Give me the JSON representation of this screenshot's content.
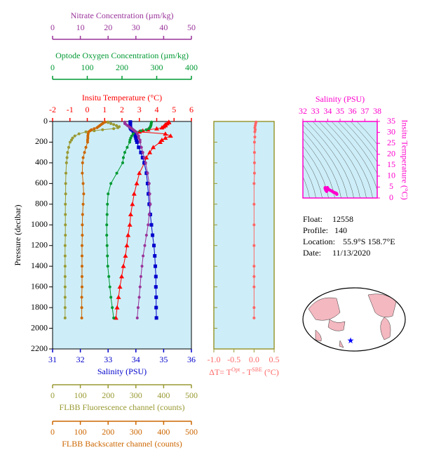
{
  "chart_data": [
    {
      "type": "line",
      "ylabel": "Pressure (decibar)",
      "ylim": [
        0,
        2200
      ],
      "yticks": [
        0,
        200,
        400,
        600,
        800,
        1000,
        1200,
        1400,
        1600,
        1800,
        2000,
        2200
      ],
      "background": "#cdeef8",
      "x_axes": [
        {
          "label": "Insitu Temperature (°C)",
          "color": "#ff0000",
          "side": "top",
          "xlim": [
            -2,
            6
          ],
          "xticks": [
            -2,
            -1,
            0,
            1,
            2,
            3,
            4,
            5,
            6
          ]
        },
        {
          "label": "Optode Oxygen Concentration (µm/kg)",
          "color": "#009933",
          "side": "top",
          "xlim": [
            0,
            400
          ],
          "xticks": [
            0,
            100,
            200,
            300,
            400
          ]
        },
        {
          "label": "Nitrate Concentration (µm/kg)",
          "color": "#993399",
          "side": "top",
          "xlim": [
            0,
            50
          ],
          "xticks": [
            0,
            10,
            20,
            30,
            40,
            50
          ]
        },
        {
          "label": "Salinity (PSU)",
          "color": "#0000cc",
          "side": "bottom",
          "xlim": [
            31,
            36
          ],
          "xticks": [
            31,
            32,
            33,
            34,
            35,
            36
          ]
        },
        {
          "label": "FLBB Fluorescence channel (counts)",
          "color": "#999933",
          "side": "bottom",
          "xlim": [
            0,
            500
          ],
          "xticks": [
            0,
            100,
            200,
            300,
            400,
            500
          ]
        },
        {
          "label": "FLBB Backscatter channel (counts)",
          "color": "#cc6600",
          "side": "bottom",
          "xlim": [
            0,
            500
          ],
          "xticks": [
            0,
            100,
            200,
            300,
            400,
            500
          ]
        }
      ],
      "series": [
        {
          "x_axis": 0,
          "color": "#ff0000",
          "marker": "triangle",
          "pressure": [
            5,
            10,
            20,
            30,
            40,
            50,
            60,
            70,
            80,
            90,
            100,
            120,
            140,
            160,
            180,
            200,
            250,
            300,
            350,
            400,
            500,
            600,
            700,
            800,
            900,
            1000,
            1100,
            1200,
            1300,
            1400,
            1500,
            1600,
            1700,
            1800,
            1900
          ],
          "values": [
            4.7,
            4.7,
            4.6,
            4.5,
            4.5,
            4.4,
            4.3,
            4.0,
            3.5,
            3.2,
            3.0,
            4.5,
            4.8,
            4.5,
            4.3,
            4.2,
            3.8,
            3.6,
            3.4,
            3.3,
            3.0,
            2.85,
            2.7,
            2.6,
            2.5,
            2.45,
            2.35,
            2.28,
            2.2,
            2.08,
            1.98,
            1.88,
            1.8,
            1.72,
            1.65
          ]
        },
        {
          "x_axis": 3,
          "color": "#0000cc",
          "marker": "square",
          "pressure": [
            5,
            10,
            20,
            30,
            40,
            50,
            60,
            70,
            80,
            90,
            100,
            120,
            140,
            160,
            180,
            200,
            250,
            300,
            350,
            400,
            500,
            600,
            700,
            800,
            900,
            1000,
            1100,
            1200,
            1300,
            1400,
            1500,
            1600,
            1700,
            1800,
            1900
          ],
          "values": [
            33.8,
            33.8,
            33.8,
            33.8,
            33.8,
            33.8,
            33.8,
            33.82,
            33.85,
            33.9,
            33.92,
            33.96,
            33.98,
            34.0,
            34.02,
            34.04,
            34.1,
            34.18,
            34.24,
            34.3,
            34.38,
            34.42,
            34.45,
            34.48,
            34.52,
            34.56,
            34.6,
            34.65,
            34.68,
            34.7,
            34.72,
            34.72,
            34.73,
            34.73,
            34.74
          ]
        },
        {
          "x_axis": 1,
          "color": "#009933",
          "marker": "circle",
          "pressure": [
            5,
            10,
            20,
            30,
            40,
            50,
            60,
            70,
            80,
            90,
            100,
            120,
            140,
            160,
            180,
            200,
            250,
            300,
            350,
            400,
            500,
            600,
            700,
            800,
            900,
            1000,
            1100,
            1200,
            1300,
            1400,
            1500,
            1600,
            1700,
            1800,
            1900
          ],
          "values": [
            285,
            285,
            284,
            284,
            283,
            282,
            280,
            278,
            270,
            255,
            240,
            232,
            228,
            225,
            223,
            222,
            215,
            208,
            204,
            202,
            185,
            168,
            160,
            158,
            157,
            156,
            156,
            157,
            158,
            159,
            162,
            165,
            168,
            172,
            176
          ]
        },
        {
          "x_axis": 2,
          "color": "#993399",
          "marker": "circle",
          "pressure": [
            5,
            10,
            20,
            30,
            40,
            50,
            60,
            70,
            80,
            90,
            100,
            120,
            140,
            160,
            180,
            200,
            250,
            300,
            350,
            400,
            500,
            600,
            700,
            800,
            900,
            1000,
            1100,
            1200,
            1300,
            1400,
            1500,
            1600,
            1700,
            1800,
            1900
          ],
          "values": [
            26,
            26,
            26,
            26.5,
            27,
            27.5,
            28,
            28.5,
            29,
            29.5,
            30,
            30.5,
            31,
            31,
            31.5,
            31.5,
            32,
            32.5,
            33,
            33.5,
            34.2,
            34.8,
            35,
            35.2,
            34.8,
            34.4,
            33.8,
            33.2,
            32.6,
            32.2,
            31.8,
            31.5,
            31.2,
            30.8,
            30.5
          ]
        },
        {
          "x_axis": 4,
          "color": "#999933",
          "marker": "circle",
          "pressure": [
            5,
            10,
            20,
            30,
            40,
            50,
            60,
            70,
            80,
            90,
            100,
            120,
            140,
            160,
            180,
            200,
            250,
            300,
            350,
            400,
            500,
            600,
            700,
            800,
            900,
            1000,
            1100,
            1200,
            1300,
            1400,
            1500,
            1600,
            1700,
            1800,
            1900
          ],
          "values": [
            200,
            200,
            210,
            220,
            230,
            240,
            235,
            220,
            180,
            150,
            120,
            95,
            80,
            72,
            68,
            63,
            58,
            54,
            52,
            50,
            48,
            47,
            47,
            46,
            46,
            46,
            46,
            45,
            45,
            45,
            45,
            45,
            45,
            45,
            45
          ]
        },
        {
          "x_axis": 5,
          "color": "#cc6600",
          "marker": "circle",
          "pressure": [
            5,
            10,
            20,
            30,
            40,
            50,
            60,
            70,
            80,
            90,
            100,
            120,
            140,
            160,
            180,
            200,
            250,
            300,
            350,
            400,
            500,
            600,
            700,
            800,
            900,
            1000,
            1100,
            1200,
            1300,
            1400,
            1500,
            1600,
            1700,
            1800,
            1900
          ],
          "values": [
            190,
            185,
            180,
            175,
            170,
            165,
            160,
            150,
            140,
            135,
            130,
            128,
            127,
            127,
            126,
            126,
            120,
            115,
            110,
            108,
            107,
            110,
            112,
            110,
            108,
            107,
            107,
            106,
            106,
            106,
            106,
            106,
            105,
            105,
            105
          ]
        }
      ]
    },
    {
      "type": "line",
      "xlabel": [
        "ΔT= T",
        "Opt",
        " - T",
        "SBE",
        " (°C)"
      ],
      "color": "#ff6666",
      "frame_color": "#999933",
      "xlim": [
        -1.0,
        0.5
      ],
      "xticks": [
        {
          "value": -1,
          "label": "-1.0"
        },
        -0.5,
        {
          "value": 0,
          "label": "0.0"
        },
        0.5
      ],
      "pressure": [
        5,
        20,
        40,
        60,
        80,
        100,
        150,
        200,
        300,
        400,
        500,
        600,
        800,
        1000,
        1200,
        1400,
        1500,
        1600,
        1800,
        1900
      ],
      "values": [
        0.05,
        0.04,
        0.03,
        0.02,
        0.03,
        0.02,
        0.02,
        0.01,
        0.01,
        0.01,
        0.01,
        0.0,
        0.0,
        0.0,
        0.0,
        0.0,
        0.0,
        0.0,
        0.0,
        0.0
      ]
    },
    {
      "type": "scatter",
      "xlabel": "Salinity (PSU)",
      "ylabel": "Insitu Temperature (°C)",
      "color": "#ff00cc",
      "xlim": [
        32,
        38
      ],
      "xticks": [
        32,
        33,
        34,
        35,
        36,
        37,
        38
      ],
      "ylim": [
        0,
        35
      ],
      "yticks": [
        0,
        5,
        10,
        15,
        20,
        25,
        30,
        35
      ]
    }
  ],
  "info": [
    {
      "label": "Float:",
      "value": "12558"
    },
    {
      "label": "Profile:",
      "value": "140"
    },
    {
      "label": "Location:",
      "value": "55.9°S  158.7°E"
    },
    {
      "label": "Date:",
      "value": "11/13/2020"
    }
  ]
}
